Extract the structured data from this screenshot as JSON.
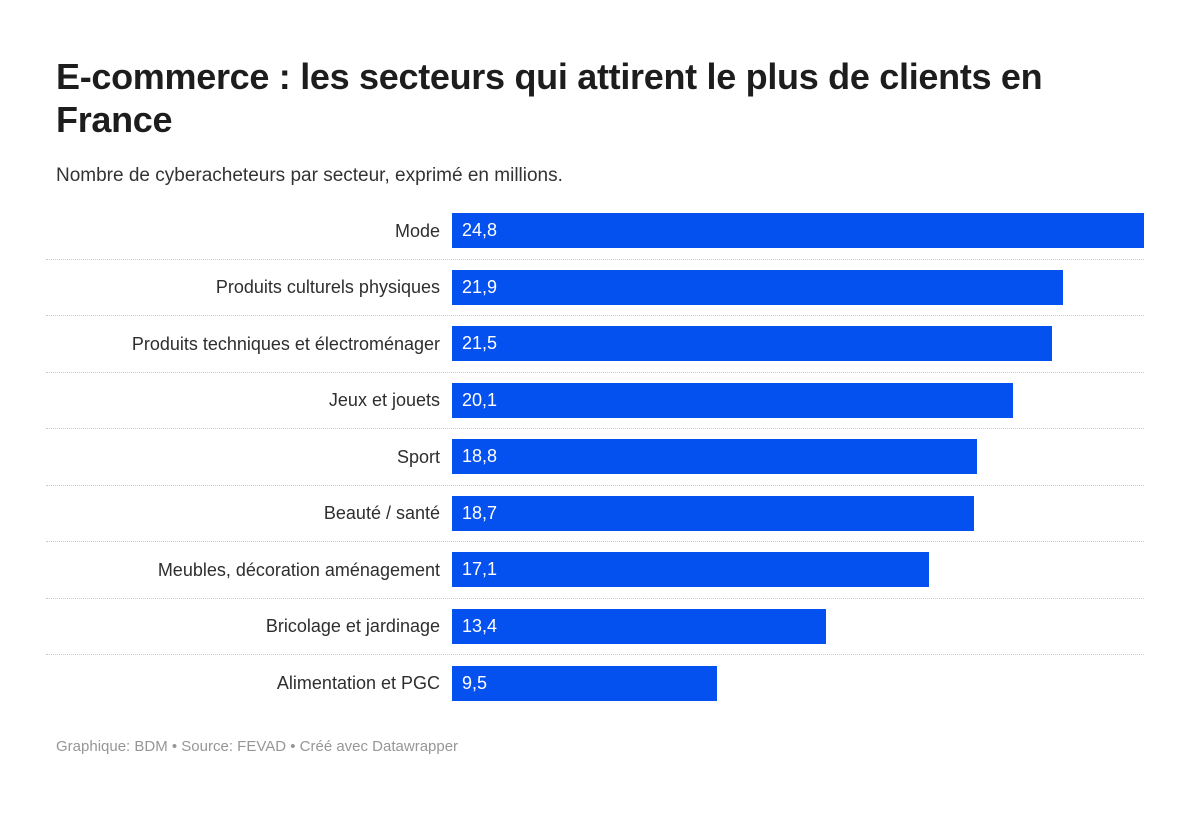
{
  "header": {
    "title": "E-commerce : les secteurs qui attirent le plus de clients en France",
    "subtitle": "Nombre de cyberacheteurs par secteur, exprimé en millions."
  },
  "chart_data": {
    "type": "bar",
    "orientation": "horizontal",
    "title": "E-commerce : les secteurs qui attirent le plus de clients en France",
    "subtitle": "Nombre de cyberacheteurs par secteur, exprimé en millions.",
    "unit": "millions de cyberacheteurs",
    "categories": [
      "Mode",
      "Produits culturels physiques",
      "Produits techniques et électroménager",
      "Jeux et jouets",
      "Sport",
      "Beauté / santé",
      "Meubles, décoration aménagement",
      "Bricolage et jardinage",
      "Alimentation et PGC"
    ],
    "values": [
      24.8,
      21.9,
      21.5,
      20.1,
      18.8,
      18.7,
      17.1,
      13.4,
      9.5
    ],
    "value_labels": [
      "24,8",
      "21,9",
      "21,5",
      "20,1",
      "18,8",
      "18,7",
      "17,1",
      "13,4",
      "9,5"
    ],
    "xlim": [
      0,
      24.8
    ],
    "grid": "dotted-row-separators",
    "legend": "none",
    "value_label_position": "inside-start",
    "bar_color": "#0551f0"
  },
  "footer": {
    "text": "Graphique: BDM • Source: FEVAD • Créé avec Datawrapper"
  },
  "colors": {
    "background": "#ffffff",
    "bar": "#0551f0",
    "title": "#1d1d1d",
    "label_text": "#2e2e2e",
    "value_text": "#ffffff",
    "separator": "#cccccc",
    "footer_text": "#969696"
  }
}
